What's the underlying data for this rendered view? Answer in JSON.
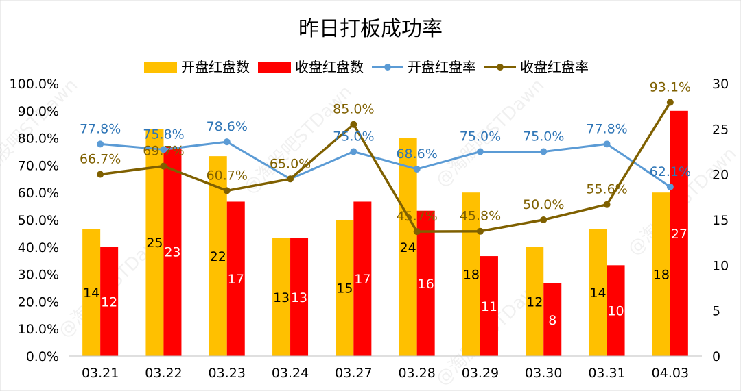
{
  "chart_data": {
    "type": "bar",
    "title": "昨日打板成功率",
    "categories": [
      "03.21",
      "03.22",
      "03.23",
      "03.24",
      "03.27",
      "03.28",
      "03.29",
      "03.30",
      "03.31",
      "04.03"
    ],
    "series": [
      {
        "name": "开盘红盘数",
        "kind": "bar",
        "axis": "right",
        "color": "#FFC000",
        "values": [
          14,
          25,
          22,
          13,
          15,
          24,
          18,
          12,
          14,
          18
        ]
      },
      {
        "name": "收盘红盘数",
        "kind": "bar",
        "axis": "right",
        "color": "#FF0000",
        "values": [
          12,
          23,
          17,
          13,
          17,
          16,
          11,
          8,
          10,
          27
        ]
      },
      {
        "name": "开盘红盘率",
        "kind": "line",
        "axis": "left",
        "color": "#5B9BD5",
        "values": [
          77.8,
          75.8,
          78.6,
          65.0,
          75.0,
          68.6,
          75.0,
          75.0,
          77.8,
          62.1
        ],
        "labels": [
          "77.8%",
          "75.8%",
          "78.6%",
          "",
          "75.0%",
          "68.6%",
          "75.0%",
          "75.0%",
          "77.8%",
          "62.1%"
        ]
      },
      {
        "name": "收盘红盘率",
        "kind": "line",
        "axis": "left",
        "color": "#7F6000",
        "values": [
          66.7,
          69.7,
          60.7,
          65.0,
          85.0,
          45.7,
          45.8,
          50.0,
          55.6,
          93.1
        ],
        "labels": [
          "66.7%",
          "69.7%",
          "60.7%",
          "65.0%",
          "85.0%",
          "45.7%",
          "45.8%",
          "50.0%",
          "55.6%",
          "93.1%"
        ]
      }
    ],
    "y_left": {
      "min": 0,
      "max": 100,
      "step": 10,
      "tick_labels": [
        "0.0%",
        "10.0%",
        "20.0%",
        "30.0%",
        "40.0%",
        "50.0%",
        "60.0%",
        "70.0%",
        "80.0%",
        "90.0%",
        "100.0%"
      ]
    },
    "y_right": {
      "min": 0,
      "max": 30,
      "step": 5,
      "tick_labels": [
        "0",
        "5",
        "10",
        "15",
        "20",
        "25",
        "30"
      ]
    },
    "grid": false,
    "legend_position": "top",
    "watermark": "@淘股吧STDawn"
  }
}
